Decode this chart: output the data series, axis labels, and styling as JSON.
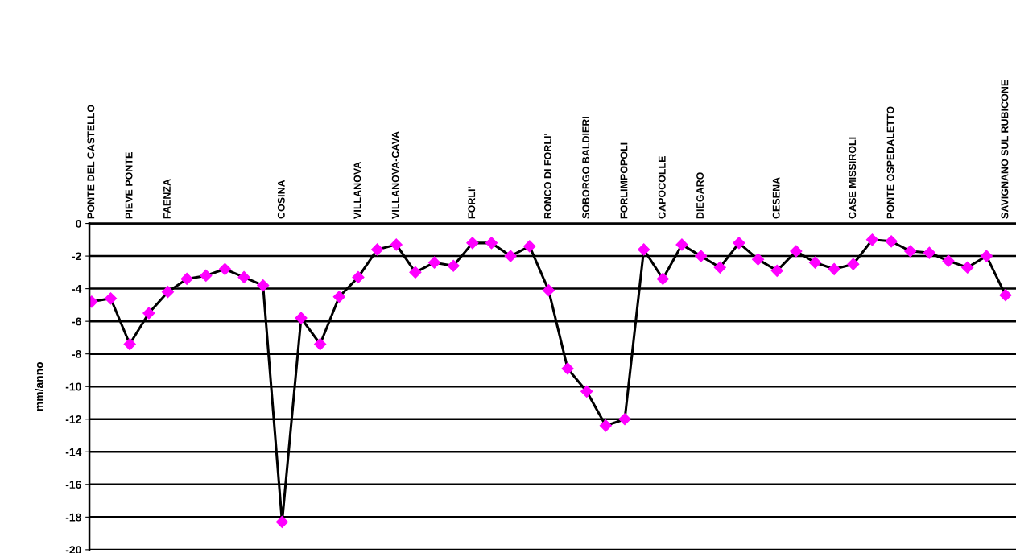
{
  "chart_data": {
    "type": "line",
    "ylabel": "mm/anno",
    "categories": [
      "PONTE DEL CASTELLO",
      null,
      "PIEVE PONTE",
      null,
      "FAENZA",
      null,
      null,
      null,
      null,
      null,
      "COSINA",
      null,
      null,
      null,
      "VILLANOVA",
      null,
      "VILLANOVA-CAVA",
      null,
      null,
      null,
      "FORLI'",
      null,
      null,
      null,
      "RONCO DI FORLI'",
      null,
      "SOBORGO BALDIERI",
      null,
      "FORLIMPOPOLI",
      null,
      "CAPOCOLLE",
      null,
      "DIEGARO",
      null,
      null,
      null,
      "CESENA",
      null,
      null,
      null,
      "CASE MISSIROLI",
      null,
      "PONTE OSPEDALETTO",
      null,
      null,
      null,
      null,
      null,
      "SAVIGNANO SUL RUBICONE"
    ],
    "series": [
      {
        "color": "#ff00ff",
        "values": [
          -4.8,
          -4.6,
          -7.4,
          -5.5,
          -4.2,
          -3.4,
          -3.2,
          -2.8,
          -3.3,
          -3.8,
          -18.3,
          -5.8,
          -7.4,
          -4.5,
          -3.3,
          -1.6,
          -1.3,
          -3.0,
          -2.4,
          -2.6,
          -1.2,
          -1.2,
          -2.0,
          -1.4,
          -4.1,
          -8.9,
          -10.3,
          -12.4,
          -12.0,
          -1.6,
          -3.4,
          -1.3,
          -2.0,
          -2.7,
          -1.2,
          -2.2,
          -2.9,
          -1.7,
          -2.4,
          -2.8,
          -2.5,
          -1.0,
          -1.1,
          -1.7,
          -1.8,
          -2.3,
          -2.7,
          -2.0,
          -4.4
        ]
      }
    ],
    "ylim": [
      -20,
      0
    ],
    "yticks": [
      0,
      -2,
      -4,
      -6,
      -8,
      -10,
      -12,
      -14,
      -16,
      -18,
      -20
    ],
    "grid": "y",
    "marker": "diamond",
    "line_style": "solid"
  }
}
